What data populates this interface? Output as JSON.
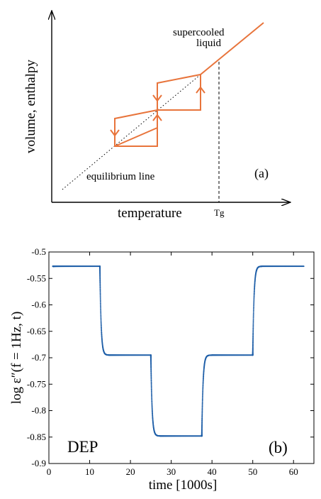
{
  "chart_data": [
    {
      "type": "diagram",
      "xlabel": "temperature",
      "ylabel": "volume, enthalpy",
      "tg_label": "Tg",
      "annotations": [
        "supercooled",
        "liquid",
        "equilibrium line"
      ],
      "panel_label": "(a)",
      "colors": {
        "curve": "#e8743b",
        "axes": "#000000"
      }
    },
    {
      "type": "scatter",
      "xlabel": "time [1000s]",
      "ylabel": "log ε″(f = 1Hz, t)",
      "xlim": [
        0,
        65
      ],
      "ylim": [
        -0.9,
        -0.5
      ],
      "xticks": [
        "0",
        "10",
        "20",
        "30",
        "40",
        "50",
        "60"
      ],
      "yticks": [
        "-0.5",
        "-0.55",
        "-0.6",
        "-0.65",
        "-0.7",
        "-0.75",
        "-0.8",
        "-0.85",
        "-0.9"
      ],
      "tag": "DEP",
      "panel_label": "(b)",
      "colors": {
        "points": "#1f5fa8"
      },
      "series": [
        {
          "segments": [
            {
              "t_start": 1.0,
              "t_end": 12.5,
              "from": -0.527,
              "to": -0.527
            },
            {
              "t_start": 12.5,
              "t_end": 25.0,
              "from": -0.527,
              "to": -0.695
            },
            {
              "t_start": 25.0,
              "t_end": 37.5,
              "from": -0.695,
              "to": -0.848
            },
            {
              "t_start": 37.5,
              "t_end": 50.0,
              "from": -0.848,
              "to": -0.695
            },
            {
              "t_start": 50.0,
              "t_end": 62.5,
              "from": -0.695,
              "to": -0.527
            }
          ]
        }
      ]
    }
  ]
}
